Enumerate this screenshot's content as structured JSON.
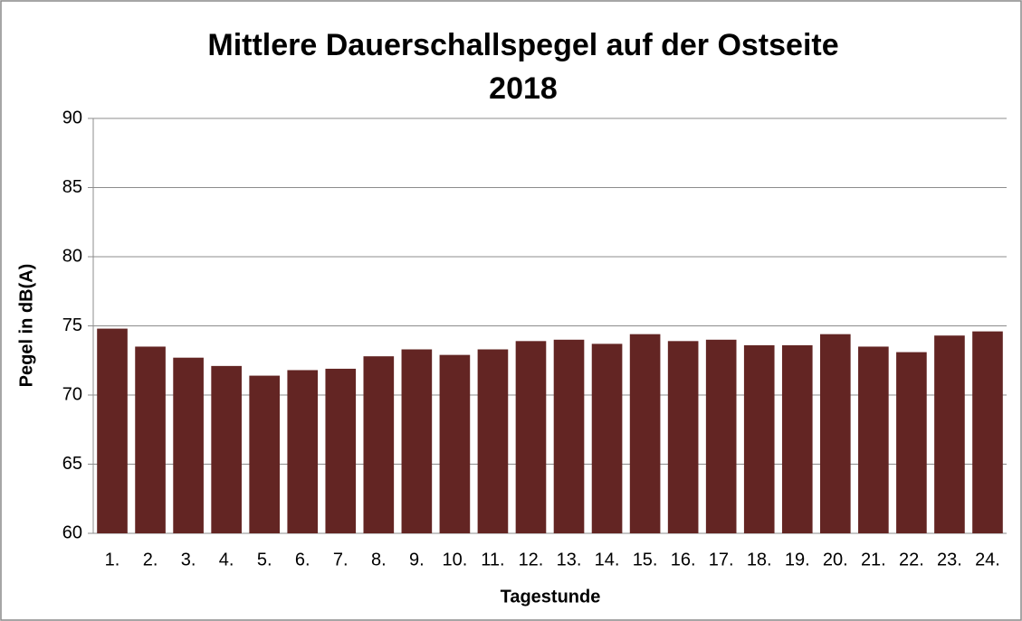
{
  "chart_data": {
    "type": "bar",
    "title": [
      "Mittlere Dauerschallspegel auf der Ostseite",
      "2018"
    ],
    "x_label": "Tagestunde",
    "y_label": "Pegel in dB(A)",
    "categories": [
      "1.",
      "2.",
      "3.",
      "4.",
      "5.",
      "6.",
      "7.",
      "8.",
      "9.",
      "10.",
      "11.",
      "12.",
      "13.",
      "14.",
      "15.",
      "16.",
      "17.",
      "18.",
      "19.",
      "20.",
      "21.",
      "22.",
      "23.",
      "24."
    ],
    "values": [
      74.8,
      73.5,
      72.7,
      72.1,
      71.4,
      71.8,
      71.9,
      72.8,
      73.3,
      72.9,
      73.3,
      73.9,
      74.0,
      73.7,
      74.4,
      73.9,
      74.0,
      73.6,
      73.6,
      74.4,
      73.5,
      73.1,
      74.3,
      74.6
    ],
    "color": "#632523",
    "ylim": [
      60,
      90
    ],
    "yticks": [
      60,
      65,
      70,
      75,
      80,
      85,
      90
    ],
    "grid": true
  }
}
